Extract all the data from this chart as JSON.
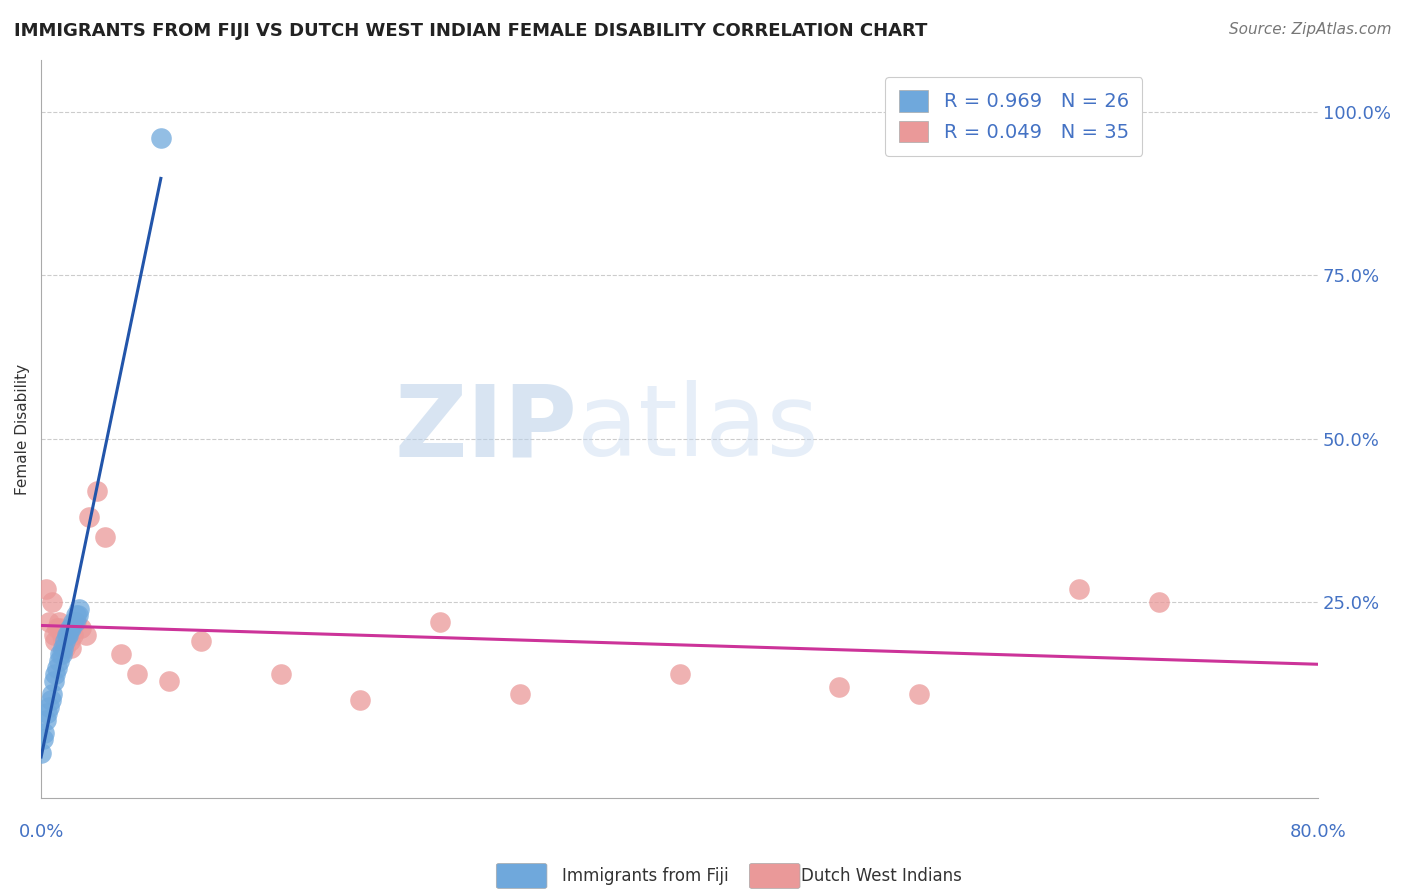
{
  "title": "IMMIGRANTS FROM FIJI VS DUTCH WEST INDIAN FEMALE DISABILITY CORRELATION CHART",
  "source": "Source: ZipAtlas.com",
  "ylabel": "Female Disability",
  "ytick_labels": [
    "100.0%",
    "75.0%",
    "50.0%",
    "25.0%"
  ],
  "ytick_values": [
    1.0,
    0.75,
    0.5,
    0.25
  ],
  "xlim": [
    0.0,
    0.8
  ],
  "ylim": [
    -0.05,
    1.08
  ],
  "fiji_color": "#6fa8dc",
  "fiji_line_color": "#2255aa",
  "dutch_color": "#ea9999",
  "dutch_line_color": "#cc3399",
  "fiji_R": 0.969,
  "fiji_N": 26,
  "dutch_R": 0.049,
  "dutch_N": 35,
  "legend_label_fiji": "Immigrants from Fiji",
  "legend_label_dutch": "Dutch West Indians",
  "watermark_zip": "ZIP",
  "watermark_atlas": "atlas",
  "fiji_x": [
    0.0,
    0.001,
    0.002,
    0.003,
    0.004,
    0.005,
    0.006,
    0.007,
    0.008,
    0.009,
    0.01,
    0.011,
    0.012,
    0.013,
    0.014,
    0.015,
    0.016,
    0.017,
    0.018,
    0.019,
    0.02,
    0.021,
    0.022,
    0.023,
    0.024,
    0.075
  ],
  "fiji_y": [
    0.02,
    0.04,
    0.05,
    0.07,
    0.08,
    0.09,
    0.1,
    0.11,
    0.13,
    0.14,
    0.15,
    0.16,
    0.17,
    0.17,
    0.18,
    0.19,
    0.2,
    0.2,
    0.21,
    0.21,
    0.22,
    0.22,
    0.23,
    0.23,
    0.24,
    0.96
  ],
  "dutch_x": [
    0.003,
    0.005,
    0.007,
    0.008,
    0.009,
    0.01,
    0.011,
    0.012,
    0.013,
    0.014,
    0.015,
    0.016,
    0.017,
    0.018,
    0.019,
    0.02,
    0.022,
    0.025,
    0.028,
    0.03,
    0.035,
    0.04,
    0.05,
    0.06,
    0.08,
    0.1,
    0.15,
    0.2,
    0.25,
    0.3,
    0.4,
    0.5,
    0.55,
    0.65,
    0.7
  ],
  "dutch_y": [
    0.27,
    0.22,
    0.25,
    0.2,
    0.19,
    0.21,
    0.22,
    0.21,
    0.2,
    0.19,
    0.18,
    0.2,
    0.2,
    0.19,
    0.18,
    0.2,
    0.22,
    0.21,
    0.2,
    0.38,
    0.42,
    0.35,
    0.17,
    0.14,
    0.13,
    0.19,
    0.14,
    0.1,
    0.22,
    0.11,
    0.14,
    0.12,
    0.11,
    0.27,
    0.25
  ]
}
